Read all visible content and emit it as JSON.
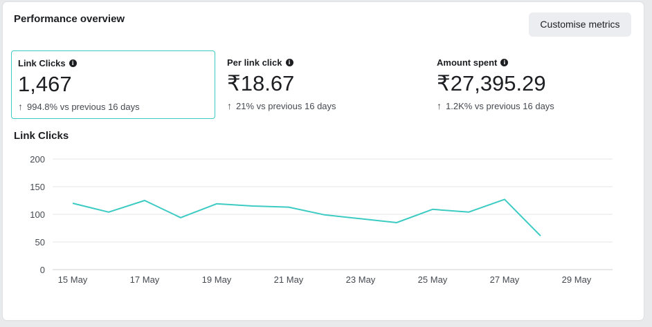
{
  "header": {
    "title": "Performance overview",
    "customise_label": "Customise metrics"
  },
  "metrics": [
    {
      "label": "Link Clicks",
      "value": "1,467",
      "change": "994.8% vs previous 16 days",
      "selected": true
    },
    {
      "label": "Per link click",
      "value": "₹18.67",
      "change": "21% vs previous 16 days",
      "selected": false
    },
    {
      "label": "Amount spent",
      "value": "₹27,395.29",
      "change": "1.2K% vs previous 16 days",
      "selected": false
    }
  ],
  "colors": {
    "accent": "#3ccbc3",
    "grid": "#e4e6eb",
    "text": "#1c1e21"
  },
  "chart_data": {
    "type": "line",
    "title": "Link Clicks",
    "xlabel": "",
    "ylabel": "",
    "ylim": [
      0,
      200
    ],
    "yticks": [
      0,
      50,
      100,
      150,
      200
    ],
    "x_tick_labels": [
      "15 May",
      "17 May",
      "19 May",
      "21 May",
      "23 May",
      "25 May",
      "27 May",
      "29 May"
    ],
    "x": [
      "15 May",
      "16 May",
      "17 May",
      "18 May",
      "19 May",
      "20 May",
      "21 May",
      "22 May",
      "23 May",
      "24 May",
      "25 May",
      "26 May",
      "27 May",
      "28 May"
    ],
    "series": [
      {
        "name": "Link Clicks",
        "values": [
          120,
          104,
          125,
          94,
          119,
          115,
          113,
          99,
          92,
          85,
          109,
          104,
          127,
          61
        ]
      }
    ],
    "grid": true
  }
}
